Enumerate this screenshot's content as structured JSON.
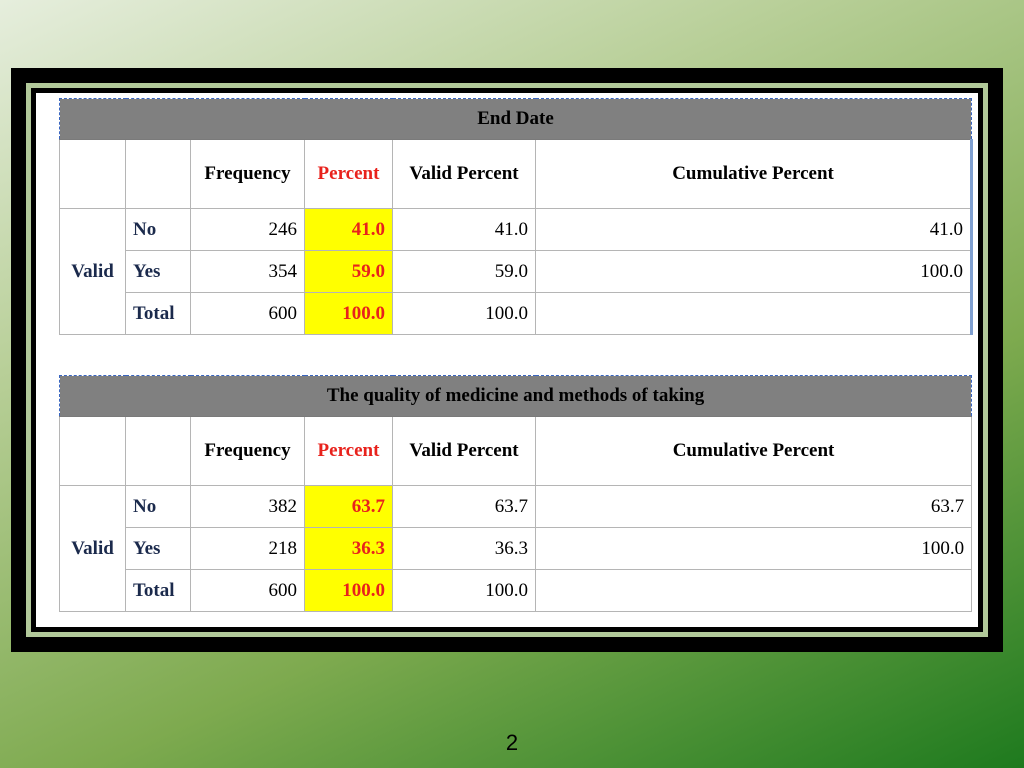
{
  "tables": [
    {
      "title": "End Date",
      "headers": [
        "",
        "",
        "Frequency",
        "Percent",
        "Valid Percent",
        "Cumulative Percent"
      ],
      "group_label": "Valid",
      "rows": [
        {
          "label": "No",
          "frequency": "246",
          "percent": "41.0",
          "valid_percent": "41.0",
          "cumulative_percent": "41.0"
        },
        {
          "label": "Yes",
          "frequency": "354",
          "percent": "59.0",
          "valid_percent": "59.0",
          "cumulative_percent": "100.0"
        },
        {
          "label": "Total",
          "frequency": "600",
          "percent": "100.0",
          "valid_percent": "100.0",
          "cumulative_percent": ""
        }
      ]
    },
    {
      "title": "The quality of medicine and methods of taking",
      "headers": [
        "",
        "",
        "Frequency",
        "Percent",
        "Valid Percent",
        "Cumulative Percent"
      ],
      "group_label": "Valid",
      "rows": [
        {
          "label": "No",
          "frequency": "382",
          "percent": "63.7",
          "valid_percent": "63.7",
          "cumulative_percent": "63.7"
        },
        {
          "label": "Yes",
          "frequency": "218",
          "percent": "36.3",
          "valid_percent": "36.3",
          "cumulative_percent": "100.0"
        },
        {
          "label": "Total",
          "frequency": "600",
          "percent": "100.0",
          "valid_percent": "100.0",
          "cumulative_percent": ""
        }
      ]
    }
  ],
  "slide_number": "2",
  "colors": {
    "percent_highlight": "#ffff00",
    "percent_text": "#e8221c",
    "title_bar": "#808080",
    "frame": "#000000"
  }
}
